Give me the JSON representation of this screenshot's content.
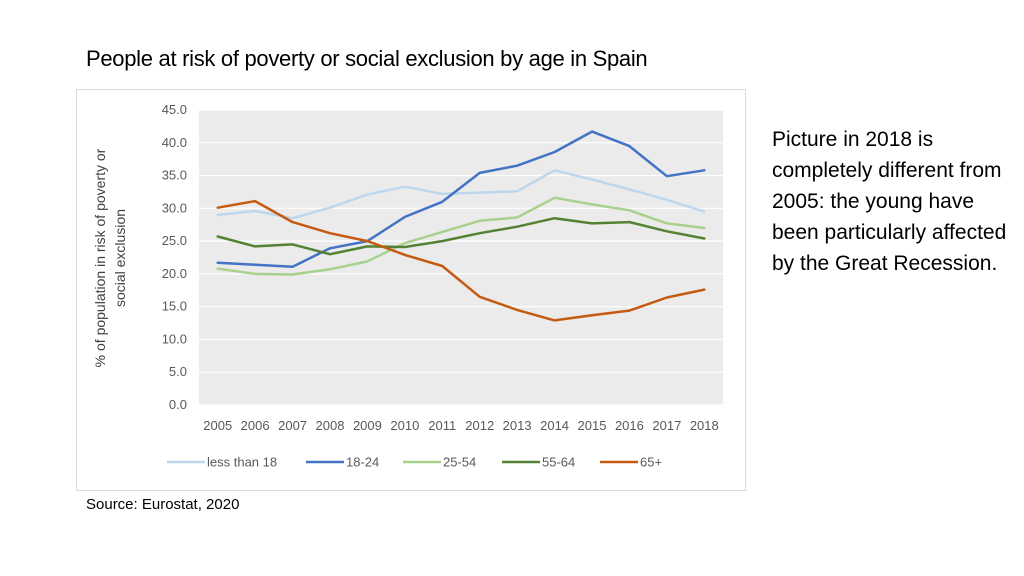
{
  "slide": {
    "title": "People at risk of poverty or social exclusion by age in Spain",
    "note": "Picture in 2018 is completely different from 2005: the young have been particularly affected by the Great Recession.",
    "source": "Source: Eurostat, 2020"
  },
  "chart_data": {
    "type": "line",
    "title": "",
    "xlabel": "",
    "ylabel_lines": [
      "% of population in risk of poverty or",
      "social exclusion"
    ],
    "x": [
      "2005",
      "2006",
      "2007",
      "2008",
      "2009",
      "2010",
      "2011",
      "2012",
      "2013",
      "2014",
      "2015",
      "2016",
      "2017",
      "2018"
    ],
    "ylim": [
      0,
      45
    ],
    "yticks": [
      "0.0",
      "5.0",
      "10.0",
      "15.0",
      "20.0",
      "25.0",
      "30.0",
      "35.0",
      "40.0",
      "45.0"
    ],
    "grid": true,
    "legend_position": "bottom",
    "series": [
      {
        "name": "less than 18",
        "color": "#bdd7ee",
        "values": [
          29.0,
          29.6,
          28.5,
          30.1,
          32.1,
          33.3,
          32.2,
          32.4,
          32.6,
          35.8,
          34.4,
          32.9,
          31.3,
          29.5
        ]
      },
      {
        "name": "18-24",
        "color": "#4472c4",
        "values": [
          21.7,
          21.4,
          21.1,
          23.9,
          25.0,
          28.7,
          31.0,
          35.4,
          36.5,
          38.6,
          41.7,
          39.5,
          34.9,
          35.8
        ]
      },
      {
        "name": "25-54",
        "color": "#a9d18e",
        "values": [
          20.8,
          20.0,
          19.9,
          20.7,
          21.9,
          24.7,
          26.4,
          28.1,
          28.6,
          31.6,
          30.6,
          29.7,
          27.7,
          27.0
        ]
      },
      {
        "name": "55-64",
        "color": "#548235",
        "values": [
          25.7,
          24.2,
          24.5,
          23.0,
          24.2,
          24.1,
          25.0,
          26.2,
          27.2,
          28.5,
          27.7,
          27.9,
          26.5,
          25.4
        ]
      },
      {
        "name": "65+",
        "color": "#c55a11",
        "values": [
          30.1,
          31.1,
          27.9,
          26.2,
          25.0,
          22.9,
          21.2,
          16.5,
          14.5,
          12.9,
          13.7,
          14.4,
          16.4,
          17.6
        ]
      }
    ]
  }
}
